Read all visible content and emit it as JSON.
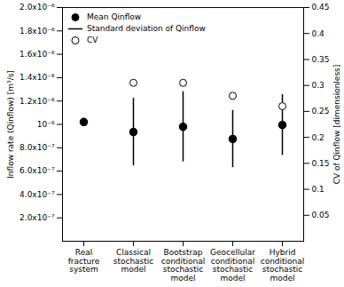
{
  "chart_data": {
    "type": "scatter",
    "categories": [
      "Real\nfracture\nsystem",
      "Classical\nstochastic\nmodel",
      "Bootstrap\nconditional\nstochastic\nmodel",
      "Geocellular\nconditional\nstochastic\nmodel",
      "Hybrid\nconditional\nstochastic\nmodel"
    ],
    "series": [
      {
        "name": "Mean Qinflow",
        "marker": "circle",
        "color": "#000000",
        "values": [
          1.02e-06,
          9.35e-07,
          9.8e-07,
          8.75e-07,
          9.95e-07
        ]
      },
      {
        "name": "Standard deviation of Qinflow",
        "type": "errorbar",
        "color": "#000000",
        "values": [
          null,
          2.9e-07,
          3e-07,
          2.45e-07,
          2.6e-07
        ]
      },
      {
        "name": "CV",
        "marker": "open circle",
        "color": "#000000",
        "axis": "y2",
        "values": [
          null,
          0.305,
          0.305,
          0.28,
          0.26
        ]
      }
    ],
    "ylabel": "Inflow rate (Qinflow) [m³/s]",
    "y2label": "CV of Qinflow [dimensionless]",
    "ylim": [
      0,
      2e-06
    ],
    "yticks": [
      {
        "value": 2e-07,
        "label": "2.0x10⁻⁷"
      },
      {
        "value": 4e-07,
        "label": "4.0x10⁻⁷"
      },
      {
        "value": 6e-07,
        "label": "6.0x10⁻⁷"
      },
      {
        "value": 8e-07,
        "label": "8.0x10⁻⁷"
      },
      {
        "value": 1e-06,
        "label": "10⁻⁶"
      },
      {
        "value": 1.2e-06,
        "label": "1.2x10⁻⁶"
      },
      {
        "value": 1.4e-06,
        "label": "1.4x10⁻⁶"
      },
      {
        "value": 1.6e-06,
        "label": "1.6x10⁻⁶"
      },
      {
        "value": 1.8e-06,
        "label": "1.8x10⁻⁶"
      },
      {
        "value": 2e-06,
        "label": "2.0x10⁻⁶"
      }
    ],
    "y2lim": [
      0,
      0.45
    ],
    "y2ticks": [
      0.05,
      0.1,
      0.15,
      0.2,
      0.25,
      0.3,
      0.35,
      0.4,
      0.45
    ],
    "legend": "top-left",
    "grid": false
  }
}
